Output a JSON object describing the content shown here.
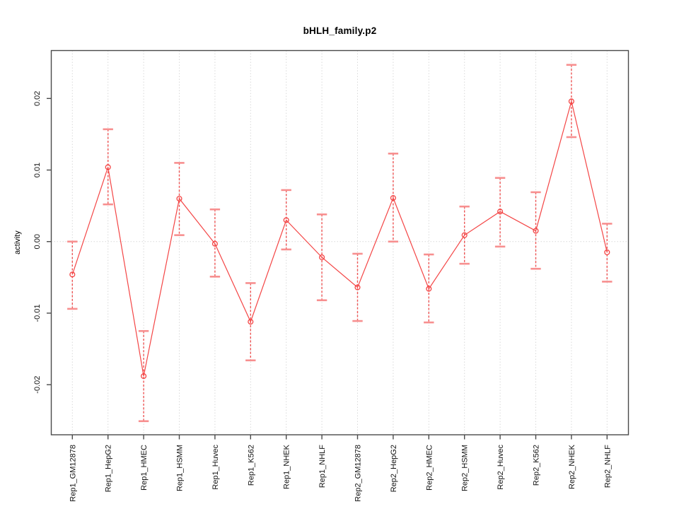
{
  "chart_data": {
    "type": "line",
    "title": "bHLH_family.p2",
    "xlabel": "",
    "ylabel": "activity",
    "legend": "none",
    "grid": "dotted vertical line at each category and dotted horizontal line at y=0",
    "categories": [
      "Rep1_GM12878",
      "Rep1_HepG2",
      "Rep1_HMEC",
      "Rep1_HSMM",
      "Rep1_Huvec",
      "Rep1_K562",
      "Rep1_NHEK",
      "Rep1_NHLF",
      "Rep2_GM12878",
      "Rep2_HepG2",
      "Rep2_HMEC",
      "Rep2_HSMM",
      "Rep2_Huvec",
      "Rep2_K562",
      "Rep2_NHEK",
      "Rep2_NHLF"
    ],
    "series": [
      {
        "name": "activity",
        "marker": "open-circle",
        "values": [
          -0.0046,
          0.0104,
          -0.0188,
          0.006,
          -0.0003,
          -0.0112,
          0.003,
          -0.0022,
          -0.0064,
          0.0061,
          -0.0066,
          0.0009,
          0.0042,
          0.0015,
          0.0196,
          -0.0015
        ],
        "upper": [
          0.0,
          0.0157,
          -0.0125,
          0.011,
          0.0045,
          -0.0058,
          0.0072,
          0.0038,
          -0.0017,
          0.0123,
          -0.0018,
          0.0049,
          0.0089,
          0.0069,
          0.0247,
          0.0025
        ],
        "lower": [
          -0.0094,
          0.0052,
          -0.0251,
          0.0009,
          -0.0049,
          -0.0166,
          -0.0011,
          -0.0082,
          -0.0111,
          0.0,
          -0.0113,
          -0.0031,
          -0.0007,
          -0.0038,
          0.0146,
          -0.0056
        ]
      }
    ],
    "yticks": {
      "values": [
        -0.02,
        -0.01,
        0.0,
        0.01,
        0.02
      ],
      "labels": [
        "-0.02",
        "-0.01",
        "0.00",
        "0.01",
        "0.02"
      ]
    },
    "ylim": [
      -0.027,
      0.0267
    ],
    "colors": {
      "series_red": "#f44545",
      "errorbar_dash_red": "#ee5555",
      "errorbar_cap_pink": "#f78f8f",
      "grid_gray": "#d9d9d9",
      "frame_gray": "#4a4a4a",
      "tick_label_black": "#111111"
    }
  }
}
